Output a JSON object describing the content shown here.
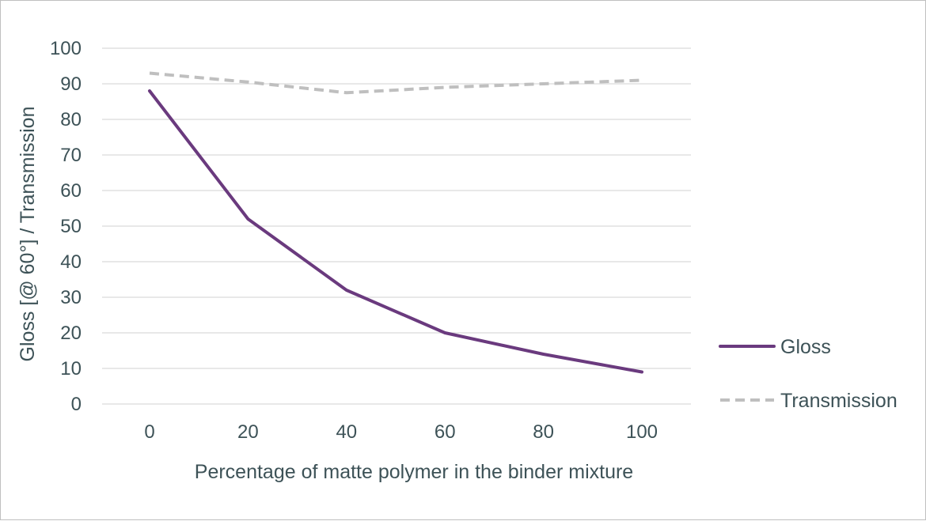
{
  "chart_data": {
    "type": "line",
    "title": "",
    "xlabel": "Percentage of matte polymer in the binder mixture",
    "ylabel": "Gloss [@ 60°]  / Transmission",
    "x": [
      0,
      20,
      40,
      60,
      80,
      100
    ],
    "x_tick_labels": [
      "0",
      "20",
      "40",
      "60",
      "80",
      "100"
    ],
    "ylim": [
      0,
      100
    ],
    "y_ticks": [
      0,
      10,
      20,
      30,
      40,
      50,
      60,
      70,
      80,
      90,
      100
    ],
    "y_tick_labels": [
      "0",
      "10",
      "20",
      "30",
      "40",
      "50",
      "60",
      "70",
      "80",
      "90",
      "100"
    ],
    "grid": true,
    "legend_position": "right",
    "series": [
      {
        "name": "Gloss",
        "values": [
          88,
          52,
          32,
          20,
          14,
          9
        ],
        "color": "#6a3a7e",
        "style": "solid"
      },
      {
        "name": "Transmission",
        "values": [
          93,
          90.5,
          87.5,
          89,
          90,
          91
        ],
        "color": "#bfbfbf",
        "style": "dashed"
      }
    ]
  }
}
